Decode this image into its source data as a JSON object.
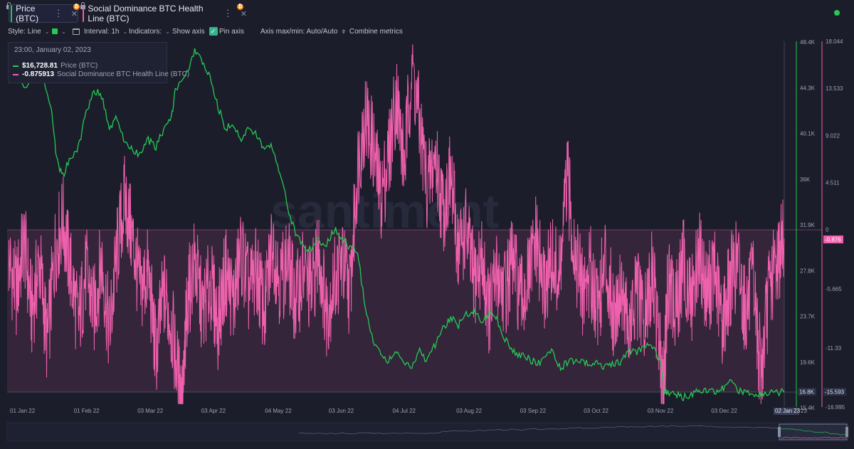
{
  "tabs": [
    {
      "label": "Price (BTC)",
      "color": "#26c953",
      "active": true
    },
    {
      "label": "Social Dominance BTC Health Line (BTC)",
      "color": "#f061ad",
      "active": false
    }
  ],
  "toolbar": {
    "style": "Style: Line",
    "interval": "Interval: 1h",
    "indicators": "Indicators:",
    "show_axis": "Show axis",
    "pin_axis": "Pin axis",
    "axis_maxmin": "Axis max/min: Auto/Auto",
    "combine": "Combine metrics"
  },
  "tooltip": {
    "date": "23:00, January 02, 2023",
    "price_value": "$16,728.81",
    "price_label": "Price (BTC)",
    "sd_value": "-0.875913",
    "sd_label": "Social Dominance BTC Health Line (BTC)"
  },
  "watermark": "santiment",
  "chart_data": {
    "type": "line",
    "x_labels": [
      "01 Jan 22",
      "01 Feb 22",
      "03 Mar 22",
      "03 Apr 22",
      "04 May 22",
      "03 Jun 22",
      "04 Jul 22",
      "03 Aug 22",
      "03 Sep 22",
      "03 Oct 22",
      "03 Nov 22",
      "03 Dec 22",
      "02 Jan 23"
    ],
    "x_end_label": "23",
    "y_left_ticks": [
      "48.4K",
      "44.3K",
      "40.1K",
      "36K",
      "31.9K",
      "27.8K",
      "23.7K",
      "19.6K",
      "15.4K"
    ],
    "y_left_current": "16.8K",
    "y_right_ticks": [
      "18.044",
      "13.533",
      "9.022",
      "4.511",
      "0",
      "-5.665",
      "-11.33",
      "-16.995"
    ],
    "y_right_current": "-15.593",
    "y_right_current2": "-0.876",
    "series": [
      {
        "name": "Price (BTC)",
        "color": "#26c953",
        "axis": "left",
        "points": [
          [
            0,
            46500
          ],
          [
            0.02,
            44200
          ],
          [
            0.04,
            46000
          ],
          [
            0.055,
            42500
          ],
          [
            0.062,
            37800
          ],
          [
            0.07,
            36200
          ],
          [
            0.08,
            38000
          ],
          [
            0.09,
            38800
          ],
          [
            0.1,
            42000
          ],
          [
            0.11,
            44000
          ],
          [
            0.12,
            43500
          ],
          [
            0.13,
            40500
          ],
          [
            0.14,
            41500
          ],
          [
            0.15,
            39200
          ],
          [
            0.16,
            38500
          ],
          [
            0.17,
            38200
          ],
          [
            0.18,
            39500
          ],
          [
            0.19,
            38800
          ],
          [
            0.2,
            40500
          ],
          [
            0.21,
            41500
          ],
          [
            0.215,
            44000
          ],
          [
            0.23,
            45500
          ],
          [
            0.24,
            47500
          ],
          [
            0.25,
            46600
          ],
          [
            0.26,
            45000
          ],
          [
            0.27,
            42500
          ],
          [
            0.28,
            40500
          ],
          [
            0.29,
            41000
          ],
          [
            0.3,
            39500
          ],
          [
            0.31,
            40500
          ],
          [
            0.32,
            40000
          ],
          [
            0.33,
            38500
          ],
          [
            0.34,
            39000
          ],
          [
            0.35,
            36500
          ],
          [
            0.36,
            33500
          ],
          [
            0.37,
            31000
          ],
          [
            0.38,
            30000
          ],
          [
            0.39,
            29500
          ],
          [
            0.4,
            30500
          ],
          [
            0.41,
            30000
          ],
          [
            0.42,
            31500
          ],
          [
            0.43,
            30500
          ],
          [
            0.44,
            29800
          ],
          [
            0.45,
            29500
          ],
          [
            0.46,
            24000
          ],
          [
            0.47,
            21500
          ],
          [
            0.48,
            20300
          ],
          [
            0.49,
            19500
          ],
          [
            0.5,
            20500
          ],
          [
            0.51,
            19300
          ],
          [
            0.52,
            18900
          ],
          [
            0.53,
            20500
          ],
          [
            0.54,
            19500
          ],
          [
            0.55,
            21000
          ],
          [
            0.56,
            22500
          ],
          [
            0.57,
            23500
          ],
          [
            0.58,
            22800
          ],
          [
            0.59,
            23700
          ],
          [
            0.6,
            24200
          ],
          [
            0.61,
            23000
          ],
          [
            0.62,
            24000
          ],
          [
            0.63,
            23300
          ],
          [
            0.64,
            21500
          ],
          [
            0.65,
            20500
          ],
          [
            0.66,
            20000
          ],
          [
            0.67,
            19800
          ],
          [
            0.68,
            19300
          ],
          [
            0.69,
            19600
          ],
          [
            0.7,
            20500
          ],
          [
            0.71,
            19000
          ],
          [
            0.72,
            19300
          ],
          [
            0.73,
            19600
          ],
          [
            0.74,
            19500
          ],
          [
            0.75,
            19200
          ],
          [
            0.76,
            19400
          ],
          [
            0.77,
            19000
          ],
          [
            0.78,
            19200
          ],
          [
            0.79,
            19500
          ],
          [
            0.8,
            20500
          ],
          [
            0.81,
            20300
          ],
          [
            0.82,
            20900
          ],
          [
            0.83,
            21000
          ],
          [
            0.84,
            19400
          ],
          [
            0.845,
            17000
          ],
          [
            0.85,
            16600
          ],
          [
            0.86,
            16500
          ],
          [
            0.87,
            16300
          ],
          [
            0.88,
            16600
          ],
          [
            0.89,
            16800
          ],
          [
            0.9,
            16900
          ],
          [
            0.91,
            16800
          ],
          [
            0.92,
            17000
          ],
          [
            0.93,
            17700
          ],
          [
            0.94,
            16800
          ],
          [
            0.95,
            16900
          ],
          [
            0.96,
            16700
          ],
          [
            0.97,
            16600
          ],
          [
            0.98,
            16700
          ],
          [
            1,
            16728
          ]
        ]
      },
      {
        "name": "Social Dominance BTC Health Line (BTC)",
        "color": "#f061ad",
        "axis": "right",
        "points": [
          [
            0,
            -3
          ],
          [
            0.01,
            -6
          ],
          [
            0.02,
            -1
          ],
          [
            0.03,
            -8
          ],
          [
            0.04,
            -3
          ],
          [
            0.05,
            -11
          ],
          [
            0.06,
            -2
          ],
          [
            0.07,
            1
          ],
          [
            0.08,
            -4
          ],
          [
            0.09,
            -9
          ],
          [
            0.1,
            -4
          ],
          [
            0.11,
            -8
          ],
          [
            0.12,
            -3
          ],
          [
            0.13,
            -10
          ],
          [
            0.14,
            -2
          ],
          [
            0.15,
            3
          ],
          [
            0.16,
            -1
          ],
          [
            0.17,
            -6
          ],
          [
            0.18,
            -4
          ],
          [
            0.19,
            -12
          ],
          [
            0.2,
            -6
          ],
          [
            0.21,
            -9
          ],
          [
            0.22,
            -15
          ],
          [
            0.225,
            -16.5
          ],
          [
            0.23,
            -7
          ],
          [
            0.24,
            -3
          ],
          [
            0.25,
            -8
          ],
          [
            0.26,
            -5
          ],
          [
            0.27,
            -9
          ],
          [
            0.28,
            -4
          ],
          [
            0.29,
            -7
          ],
          [
            0.3,
            -2
          ],
          [
            0.31,
            -6
          ],
          [
            0.32,
            -4
          ],
          [
            0.33,
            -8
          ],
          [
            0.34,
            -1
          ],
          [
            0.35,
            -5
          ],
          [
            0.36,
            -3
          ],
          [
            0.37,
            -7
          ],
          [
            0.38,
            -4
          ],
          [
            0.39,
            -6
          ],
          [
            0.4,
            -2
          ],
          [
            0.41,
            -8
          ],
          [
            0.42,
            -5
          ],
          [
            0.43,
            -3
          ],
          [
            0.44,
            -6
          ],
          [
            0.45,
            6
          ],
          [
            0.46,
            11
          ],
          [
            0.47,
            8
          ],
          [
            0.48,
            3
          ],
          [
            0.49,
            7
          ],
          [
            0.5,
            13
          ],
          [
            0.51,
            6
          ],
          [
            0.52,
            16
          ],
          [
            0.53,
            10
          ],
          [
            0.54,
            4
          ],
          [
            0.55,
            7
          ],
          [
            0.56,
            2
          ],
          [
            0.57,
            5
          ],
          [
            0.58,
            -2
          ],
          [
            0.59,
            0
          ],
          [
            0.6,
            -5
          ],
          [
            0.61,
            -3
          ],
          [
            0.62,
            -8
          ],
          [
            0.63,
            -4
          ],
          [
            0.64,
            -6
          ],
          [
            0.65,
            -3
          ],
          [
            0.66,
            -7
          ],
          [
            0.67,
            -5
          ],
          [
            0.68,
            -1
          ],
          [
            0.69,
            -6
          ],
          [
            0.7,
            -3
          ],
          [
            0.71,
            -5
          ],
          [
            0.72,
            5
          ],
          [
            0.73,
            -2
          ],
          [
            0.74,
            -6
          ],
          [
            0.75,
            -4
          ],
          [
            0.76,
            -7
          ],
          [
            0.77,
            -3
          ],
          [
            0.78,
            -8
          ],
          [
            0.79,
            -5
          ],
          [
            0.8,
            -10
          ],
          [
            0.81,
            -6
          ],
          [
            0.82,
            -9
          ],
          [
            0.83,
            -4
          ],
          [
            0.84,
            -12
          ],
          [
            0.845,
            -15
          ],
          [
            0.85,
            -5
          ],
          [
            0.86,
            -8
          ],
          [
            0.87,
            -3
          ],
          [
            0.88,
            -7
          ],
          [
            0.89,
            -2
          ],
          [
            0.9,
            -6
          ],
          [
            0.91,
            -4
          ],
          [
            0.92,
            -9
          ],
          [
            0.93,
            -5
          ],
          [
            0.94,
            -3
          ],
          [
            0.95,
            -8
          ],
          [
            0.96,
            -5
          ],
          [
            0.97,
            -14
          ],
          [
            0.98,
            -6
          ],
          [
            0.99,
            -3
          ],
          [
            1,
            -0.876
          ]
        ]
      }
    ],
    "ylim_left": [
      15400,
      48400
    ],
    "ylim_right": [
      -16.995,
      18.044
    ],
    "grid": false
  }
}
